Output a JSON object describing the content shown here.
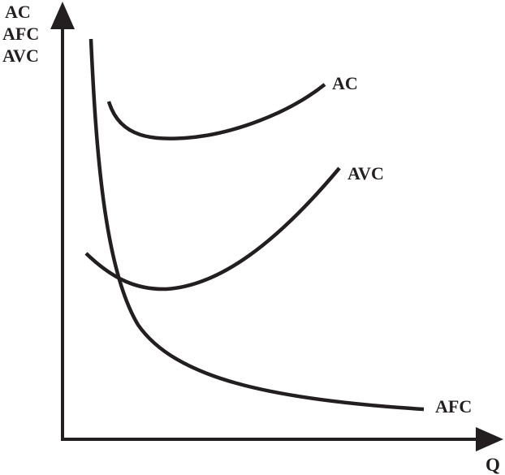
{
  "y_axis": {
    "label_lines": [
      "AC",
      "AFC",
      "AVC"
    ]
  },
  "x_axis": {
    "label": "Q"
  },
  "curves": {
    "ac": {
      "label": "AC"
    },
    "avc": {
      "label": "AVC"
    },
    "afc": {
      "label": "AFC"
    }
  },
  "colors": {
    "ink": "#231f20",
    "background": "#ffffff"
  }
}
